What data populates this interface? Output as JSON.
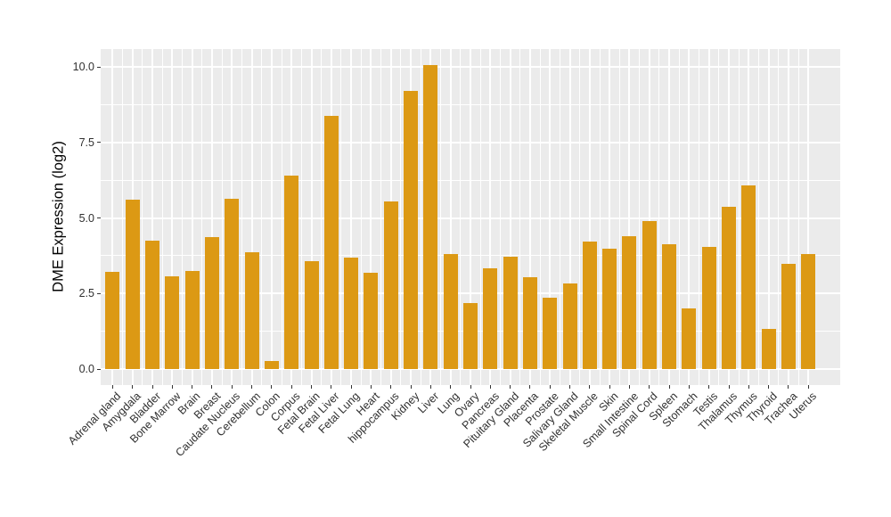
{
  "figure": {
    "background": "#FFFFFF",
    "panel_background": "#EBEBEB",
    "gridline_color": "#FFFFFF",
    "bar_color": "#DC9914",
    "axis_text_color": "#303030",
    "tick_mark_color": "#333333"
  },
  "chart_data": {
    "type": "bar",
    "title": "",
    "xlabel": "",
    "ylabel": "DME Expression (log2)",
    "legend": false,
    "grid": true,
    "ylim": [
      -0.5,
      10.6
    ],
    "yticks": [
      0.0,
      2.5,
      5.0,
      7.5,
      10.0
    ],
    "ytick_labels": [
      "0.0",
      "2.5",
      "5.0",
      "7.5",
      "10.0"
    ],
    "yticks_minor": [
      1.25,
      3.75,
      6.25,
      8.75
    ],
    "bar_color": "#DC9914",
    "categories": [
      "Adrenal gland",
      "Amygdala",
      "Bladder",
      "Bone Marrow",
      "Brain",
      "Breast",
      "Caudate Nucleus",
      "Cerebellum",
      "Colon",
      "Corpus",
      "Fetal Brain",
      "Fetal Liver",
      "Fetal Lung",
      "Heart",
      "hippocampus",
      "Kidney",
      "Liver",
      "Lung",
      "Ovary",
      "Pancreas",
      "Pituitary Gland",
      "Placenta",
      "Prostate",
      "Salivary Gland",
      "Skeletal Muscle",
      "Skin",
      "Small Intestine",
      "Spinal Cord",
      "Spleen",
      "Stomach",
      "Testis",
      "Thalamus",
      "Thymus",
      "Thyroid",
      "Trachea",
      "Uterus"
    ],
    "values": [
      3.23,
      5.6,
      4.25,
      3.08,
      3.24,
      4.37,
      5.63,
      3.87,
      0.27,
      6.41,
      3.56,
      8.37,
      3.68,
      3.19,
      5.55,
      9.19,
      10.05,
      3.81,
      2.18,
      3.33,
      3.72,
      3.04,
      2.36,
      2.82,
      4.22,
      3.97,
      4.41,
      4.91,
      4.12,
      2.01,
      4.05,
      5.38,
      6.09,
      1.32,
      3.48,
      3.81
    ]
  }
}
